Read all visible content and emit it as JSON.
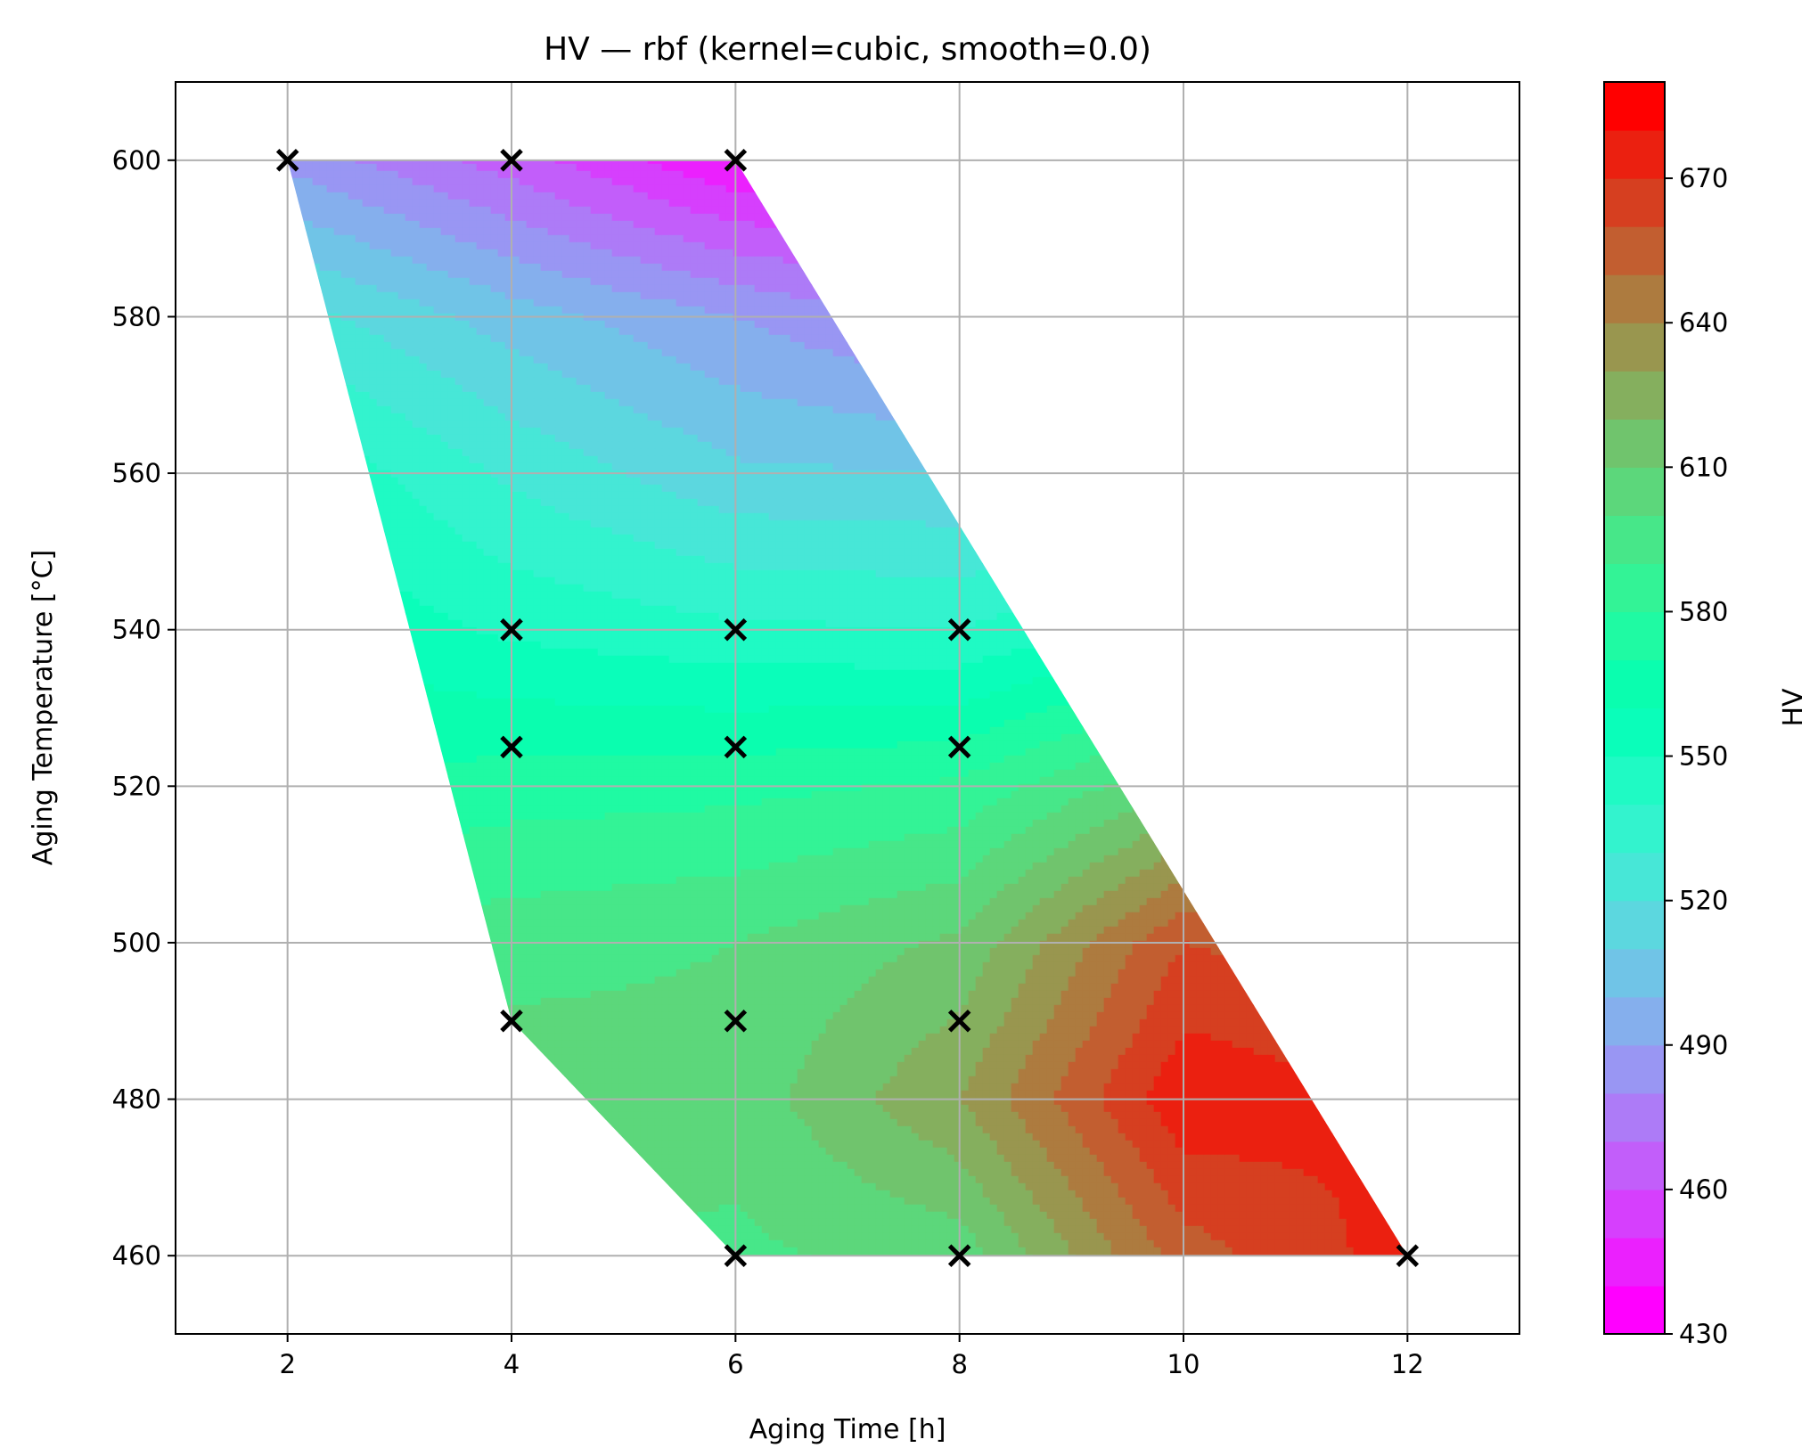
{
  "chart_data": {
    "type": "contour",
    "title": "HV — rbf (kernel=cubic, smooth=0.0)",
    "xlabel": "Aging Time [h]",
    "ylabel": "Aging Temperature [°C]",
    "xlim": [
      1,
      13
    ],
    "ylim": [
      450,
      610
    ],
    "xticks": [
      2,
      4,
      6,
      8,
      10,
      12
    ],
    "yticks": [
      460,
      480,
      500,
      520,
      540,
      560,
      580,
      600
    ],
    "grid": true,
    "colormap": "rainbow",
    "colorbar": {
      "label": "HV",
      "range": [
        430,
        690
      ],
      "ticks": [
        430,
        460,
        490,
        520,
        550,
        580,
        610,
        640,
        670
      ],
      "levels": [
        430,
        440,
        450,
        460,
        470,
        480,
        490,
        500,
        510,
        520,
        530,
        540,
        550,
        560,
        570,
        580,
        590,
        600,
        610,
        620,
        630,
        640,
        650,
        660,
        670,
        680,
        690
      ]
    },
    "hull": [
      [
        2,
        600
      ],
      [
        6,
        600
      ],
      [
        12,
        460
      ],
      [
        6,
        460
      ],
      [
        4,
        490
      ]
    ],
    "contour_grid": {
      "x": [
        2,
        4,
        6,
        8,
        10,
        12
      ],
      "y": [
        460,
        480,
        500,
        520,
        540,
        560,
        580,
        600
      ],
      "z": [
        [
          595,
          601,
          598,
          604,
          655,
          675
        ],
        [
          600,
          606,
          604,
          630,
          678,
          670
        ],
        [
          590,
          596,
          600,
          612,
          660,
          652
        ],
        [
          570,
          575,
          577,
          582,
          610,
          620
        ],
        [
          560,
          548,
          542,
          540,
          555,
          565
        ],
        [
          550,
          528,
          512,
          510,
          520,
          530
        ],
        [
          525,
          505,
          490,
          475,
          480,
          490
        ],
        [
          487,
          465,
          440,
          440,
          445,
          450
        ]
      ]
    },
    "sample_points": {
      "marker": "x",
      "points": [
        [
          2,
          600
        ],
        [
          4,
          600
        ],
        [
          6,
          600
        ],
        [
          4,
          540
        ],
        [
          6,
          540
        ],
        [
          8,
          540
        ],
        [
          4,
          525
        ],
        [
          6,
          525
        ],
        [
          8,
          525
        ],
        [
          4,
          490
        ],
        [
          6,
          490
        ],
        [
          8,
          490
        ],
        [
          6,
          460
        ],
        [
          8,
          460
        ],
        [
          12,
          460
        ]
      ]
    }
  }
}
